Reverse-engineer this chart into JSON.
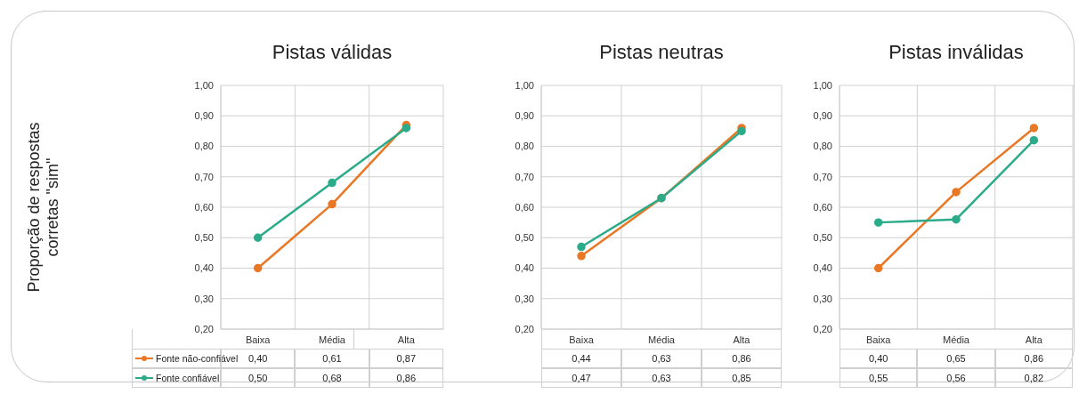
{
  "chart_data": [
    {
      "type": "line",
      "title": "Pistas válidas",
      "ylabel": "Proporção de respostas corretas \"sim\"",
      "categories": [
        "Baixa",
        "Média",
        "Alta"
      ],
      "series": [
        {
          "name": "Fonte não-confiável",
          "color": "#e97724",
          "values": [
            0.4,
            0.61,
            0.87
          ],
          "value_labels": [
            "0,40",
            "0,61",
            "0,87"
          ]
        },
        {
          "name": "Fonte confiável",
          "color": "#2bab8a",
          "values": [
            0.5,
            0.68,
            0.86
          ],
          "value_labels": [
            "0,50",
            "0,68",
            "0,86"
          ]
        }
      ],
      "ylim": [
        0.2,
        1.0
      ],
      "yticks": [
        {
          "value": 0.2,
          "label": "0,20"
        },
        {
          "value": 0.3,
          "label": "0,30"
        },
        {
          "value": 0.4,
          "label": "0,40"
        },
        {
          "value": 0.5,
          "label": "0,50"
        },
        {
          "value": 0.6,
          "label": "0,60"
        },
        {
          "value": 0.7,
          "label": "0,70"
        },
        {
          "value": 0.8,
          "label": "0,80"
        },
        {
          "value": 0.9,
          "label": "0,90"
        },
        {
          "value": 1.0,
          "label": "1,00"
        }
      ],
      "grid": true,
      "marker": "circle",
      "legend": "bottom left"
    },
    {
      "type": "line",
      "title": "Pistas neutras",
      "categories": [
        "Baixa",
        "Média",
        "Alta"
      ],
      "series": [
        {
          "color": "#e97724",
          "values": [
            0.44,
            0.63,
            0.86
          ],
          "value_labels": [
            "0,44",
            "0,63",
            "0,86"
          ]
        },
        {
          "color": "#2bab8a",
          "values": [
            0.47,
            0.63,
            0.85
          ],
          "value_labels": [
            "0,47",
            "0,63",
            "0,85"
          ]
        }
      ],
      "ylim": [
        0.2,
        1.0
      ],
      "yticks": [
        {
          "value": 0.2,
          "label": "0,20"
        },
        {
          "value": 0.3,
          "label": "0,30"
        },
        {
          "value": 0.4,
          "label": "0,40"
        },
        {
          "value": 0.5,
          "label": "0,50"
        },
        {
          "value": 0.6,
          "label": "0,60"
        },
        {
          "value": 0.7,
          "label": "0,70"
        },
        {
          "value": 0.8,
          "label": "0,80"
        },
        {
          "value": 0.9,
          "label": "0,90"
        },
        {
          "value": 1.0,
          "label": "1,00"
        }
      ],
      "grid": true,
      "marker": "circle"
    },
    {
      "type": "line",
      "title": "Pistas inválidas",
      "categories": [
        "Baixa",
        "Média",
        "Alta"
      ],
      "series": [
        {
          "color": "#e97724",
          "values": [
            0.4,
            0.65,
            0.86
          ],
          "value_labels": [
            "0,40",
            "0,65",
            "0,86"
          ]
        },
        {
          "color": "#2bab8a",
          "values": [
            0.55,
            0.56,
            0.82
          ],
          "value_labels": [
            "0,55",
            "0,56",
            "0,82"
          ]
        }
      ],
      "ylim": [
        0.2,
        1.0
      ],
      "yticks": [
        {
          "value": 0.2,
          "label": "0,20"
        },
        {
          "value": 0.3,
          "label": "0,30"
        },
        {
          "value": 0.4,
          "label": "0,40"
        },
        {
          "value": 0.5,
          "label": "0,50"
        },
        {
          "value": 0.6,
          "label": "0,60"
        },
        {
          "value": 0.7,
          "label": "0,70"
        },
        {
          "value": 0.8,
          "label": "0,80"
        },
        {
          "value": 0.9,
          "label": "0,90"
        },
        {
          "value": 1.0,
          "label": "1,00"
        }
      ],
      "grid": true,
      "marker": "circle"
    }
  ]
}
